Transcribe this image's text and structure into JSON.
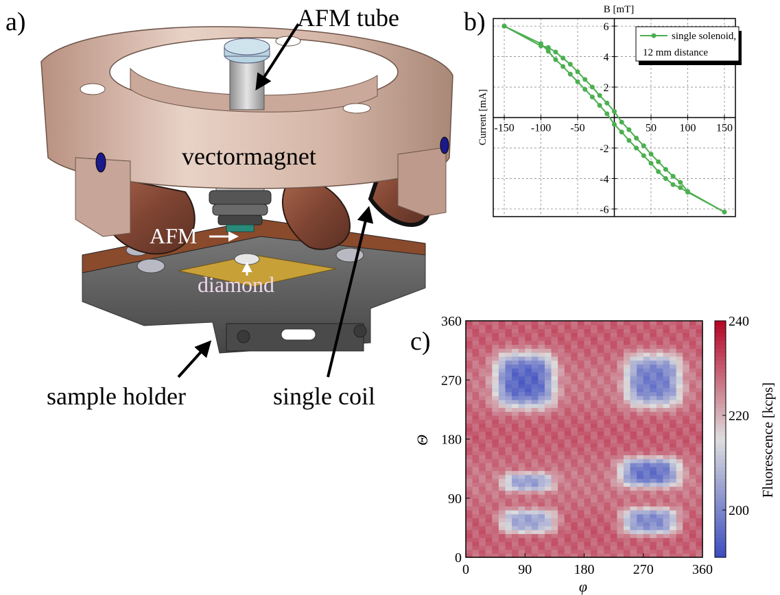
{
  "panels": {
    "a": {
      "letter": "a)",
      "labels": {
        "afm_tube": "AFM tube",
        "vectormagnet": "vectormagnet",
        "afm": "AFM",
        "diamond": "diamond",
        "sample_holder": "sample holder",
        "single_coil": "single coil"
      },
      "colors": {
        "ring": "#c9a99a",
        "coil": "#8a4f3a",
        "plate": "#5a5a5a",
        "pcb": "#b98a32"
      }
    },
    "b": {
      "letter": "b)"
    },
    "c": {
      "letter": "c)"
    }
  },
  "chart_data": [
    {
      "type": "line",
      "xlabel": "Current [mA]",
      "ylabel": "B [mT]",
      "xlim": [
        -165,
        165
      ],
      "ylim": [
        -6.5,
        6.5
      ],
      "x_ticks": [
        -150,
        -100,
        -50,
        0,
        50,
        100,
        150
      ],
      "x_tick_labels": [
        "-150",
        "-100",
        "-50",
        "",
        "50",
        "100",
        "150"
      ],
      "y_ticks": [
        -6,
        -4,
        -2,
        0,
        2,
        4,
        6
      ],
      "y_tick_labels": [
        "-6",
        "-4",
        "-2",
        "",
        "2",
        "4",
        "6"
      ],
      "grid": true,
      "legend": "top-right",
      "legend_lines": [
        "single solenoid,",
        "12 mm distance"
      ],
      "series": [
        {
          "name": "single solenoid, 12 mm distance",
          "color": "#4caf50",
          "branch_down": {
            "x": [
              -150,
              -100,
              -90,
              -80,
              -70,
              -60,
              -50,
              -40,
              -30,
              -20,
              -10,
              0,
              10,
              20,
              30,
              40,
              50,
              60,
              70,
              80,
              90,
              100,
              150
            ],
            "y": [
              6.0,
              4.7,
              4.6,
              4.3,
              3.9,
              3.5,
              3.0,
              2.5,
              2.0,
              1.45,
              0.95,
              0.4,
              -0.3,
              -0.8,
              -1.35,
              -1.85,
              -2.4,
              -2.9,
              -3.4,
              -3.85,
              -4.25,
              -4.85,
              -6.2
            ]
          },
          "branch_up": {
            "x": [
              150,
              100,
              90,
              80,
              70,
              60,
              50,
              40,
              30,
              20,
              10,
              0,
              -10,
              -20,
              -30,
              -40,
              -50,
              -60,
              -70,
              -80,
              -90,
              -100,
              -150
            ],
            "y": [
              -6.2,
              -4.9,
              -4.6,
              -4.4,
              -4.0,
              -3.55,
              -3.0,
              -2.5,
              -2.0,
              -1.5,
              -0.95,
              -0.45,
              0.25,
              0.8,
              1.35,
              1.85,
              2.35,
              2.85,
              3.35,
              3.8,
              4.35,
              4.85,
              6.0
            ]
          }
        }
      ]
    },
    {
      "type": "heatmap",
      "xlabel": "φ",
      "ylabel": "Θ",
      "xlim": [
        0,
        360
      ],
      "ylim": [
        0,
        360
      ],
      "x_ticks": [
        0,
        90,
        180,
        270,
        360
      ],
      "y_ticks": [
        0,
        90,
        180,
        270,
        360
      ],
      "colorbar_label": "Fluorescence [kcps]",
      "colorbar_ticks": [
        200,
        220,
        240
      ],
      "colorbar_range": [
        190,
        240
      ],
      "colormap": "coolwarm",
      "baseline": 228,
      "dips": [
        {
          "phi": 90,
          "theta": 270,
          "depth": 32,
          "sphi": 45,
          "stheta": 42
        },
        {
          "phi": 285,
          "theta": 270,
          "depth": 28,
          "sphi": 42,
          "stheta": 40
        },
        {
          "phi": 95,
          "theta": 115,
          "depth": 22,
          "sphi": 38,
          "stheta": 14
        },
        {
          "phi": 95,
          "theta": 55,
          "depth": 24,
          "sphi": 42,
          "stheta": 18
        },
        {
          "phi": 280,
          "theta": 130,
          "depth": 30,
          "sphi": 45,
          "stheta": 22
        },
        {
          "phi": 280,
          "theta": 55,
          "depth": 28,
          "sphi": 42,
          "stheta": 20
        }
      ]
    }
  ]
}
